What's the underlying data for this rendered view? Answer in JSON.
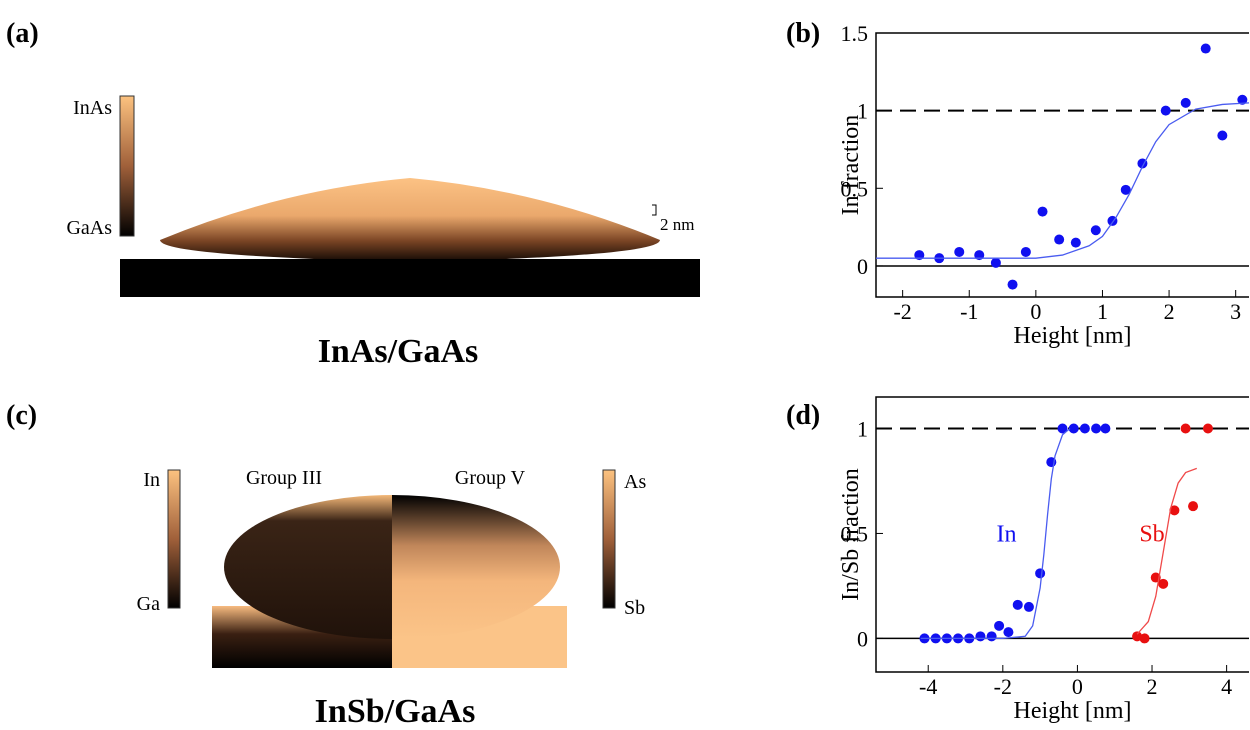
{
  "panels": {
    "a": {
      "label": "(a)",
      "colorbar_top": "InAs",
      "colorbar_bottom": "GaAs",
      "scale": "2 nm",
      "caption": "InAs/GaAs"
    },
    "c": {
      "label": "(c)",
      "left_title": "Group III",
      "right_title": "Group V",
      "left_top": "In",
      "left_bottom": "Ga",
      "right_top": "As",
      "right_bottom": "Sb",
      "caption": "InSb/GaAs"
    }
  },
  "chart_data": [
    {
      "type": "scatter",
      "panel_label": "(b)",
      "x_label": "Height [nm]",
      "y_label": "In fraction",
      "xlim": [
        -2.4,
        3.2
      ],
      "ylim": [
        -0.2,
        1.5
      ],
      "xticks": [
        -2,
        -1,
        0,
        1,
        2,
        3
      ],
      "yticks": [
        0,
        0.5,
        1,
        1.5
      ],
      "reference_lines": [
        {
          "y": 1,
          "style": "dashed"
        },
        {
          "y": 0,
          "style": "solid"
        }
      ],
      "series": [
        {
          "mode": "markers",
          "color": "#1010f0",
          "x": [
            -1.75,
            -1.45,
            -1.15,
            -0.85,
            -0.6,
            -0.35,
            -0.15,
            0.1,
            0.35,
            0.6,
            0.9,
            1.15,
            1.35,
            1.6,
            1.95,
            2.25,
            2.55,
            2.8,
            3.1
          ],
          "values": [
            0.07,
            0.05,
            0.09,
            0.07,
            0.02,
            -0.12,
            0.09,
            0.35,
            0.17,
            0.15,
            0.23,
            0.29,
            0.49,
            0.66,
            1.0,
            1.05,
            1.4,
            0.84,
            1.07
          ]
        },
        {
          "mode": "line",
          "color": "#4a5cf0",
          "x": [
            -2.4,
            -1.6,
            -0.8,
            0,
            0.4,
            0.8,
            1.0,
            1.2,
            1.4,
            1.6,
            1.8,
            2.0,
            2.4,
            2.8,
            3.2
          ],
          "values": [
            0.05,
            0.05,
            0.05,
            0.05,
            0.07,
            0.13,
            0.19,
            0.31,
            0.46,
            0.64,
            0.8,
            0.91,
            1.01,
            1.04,
            1.05
          ]
        }
      ]
    },
    {
      "type": "scatter",
      "panel_label": "(d)",
      "x_label": "Height [nm]",
      "y_label": "In/Sb fraction",
      "xlim": [
        -5.4,
        4.6
      ],
      "ylim": [
        -0.16,
        1.15
      ],
      "xticks": [
        -4,
        -2,
        0,
        2,
        4
      ],
      "yticks": [
        0,
        0.5,
        1
      ],
      "reference_lines": [
        {
          "y": 1,
          "style": "dashed"
        },
        {
          "y": 0,
          "style": "solid"
        }
      ],
      "annotations": [
        {
          "text": "In",
          "x": -1.9,
          "y": 0.5,
          "color": "#1010f0"
        },
        {
          "text": "Sb",
          "x": 2.0,
          "y": 0.5,
          "color": "#e81010"
        }
      ],
      "series": [
        {
          "mode": "markers",
          "color": "#1010f0",
          "x": [
            -4.1,
            -3.8,
            -3.5,
            -3.2,
            -2.9,
            -2.6,
            -2.3,
            -2.1,
            -1.85,
            -1.6,
            -1.3,
            -1.0,
            -0.7,
            -0.4,
            -0.1,
            0.2,
            0.5,
            0.75
          ],
          "values": [
            0,
            0,
            0,
            0,
            0,
            0.01,
            0.01,
            0.06,
            0.03,
            0.16,
            0.15,
            0.31,
            0.84,
            1.0,
            1.0,
            1.0,
            1.0,
            1.0
          ]
        },
        {
          "mode": "line",
          "color": "#4a5cf0",
          "x": [
            -4.2,
            -2.0,
            -1.4,
            -1.2,
            -1.0,
            -0.9,
            -0.8,
            -0.7,
            -0.6,
            -0.4,
            -0.2
          ],
          "values": [
            0,
            0,
            0.01,
            0.06,
            0.24,
            0.4,
            0.59,
            0.76,
            0.87,
            0.97,
            1.0
          ]
        },
        {
          "mode": "markers",
          "color": "#e81010",
          "x": [
            1.6,
            1.8,
            2.1,
            2.3,
            2.6,
            3.1,
            2.9,
            3.5
          ],
          "values": [
            0.01,
            0.0,
            0.29,
            0.26,
            0.61,
            0.63,
            1.0,
            1.0
          ]
        },
        {
          "mode": "line",
          "color": "#f04a4a",
          "x": [
            1.6,
            1.9,
            2.1,
            2.3,
            2.5,
            2.7,
            2.9,
            3.2
          ],
          "values": [
            0.02,
            0.08,
            0.2,
            0.41,
            0.62,
            0.74,
            0.79,
            0.81
          ]
        }
      ]
    }
  ]
}
